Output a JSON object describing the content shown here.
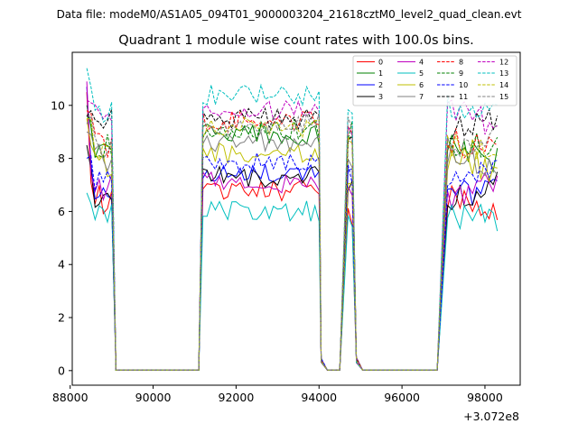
{
  "chart_data": {
    "type": "line",
    "suptitle": "Data file: modeM0/AS1A05_094T01_9000003204_21618cztM0_level2_quad_clean.evt",
    "title": "Quadrant 1 module wise count rates with 100.0s bins.",
    "xlabel": "",
    "ylabel": "",
    "x_offset_label": "+3.072e8",
    "xlim": [
      88050,
      98850
    ],
    "ylim": [
      -0.55,
      12.0
    ],
    "xticks": [
      88000,
      90000,
      92000,
      94000,
      96000,
      98000
    ],
    "xtick_labels": [
      "88000",
      "90000",
      "92000",
      "94000",
      "96000",
      "98000"
    ],
    "yticks": [
      0,
      2,
      4,
      6,
      8,
      10
    ],
    "ytick_labels": [
      "0",
      "2",
      "4",
      "6",
      "8",
      "10"
    ],
    "grid": false,
    "legend": {
      "position": "top-right",
      "columns": 4
    },
    "segments": [
      {
        "x_start": 88400,
        "x_end": 89050,
        "kind": "data"
      },
      {
        "x_start": 89100,
        "x_end": 91100,
        "kind": "zero"
      },
      {
        "x_start": 91200,
        "x_end": 94000,
        "kind": "data"
      },
      {
        "x_start": 94200,
        "x_end": 94500,
        "kind": "zero"
      },
      {
        "x_start": 94700,
        "x_end": 94850,
        "kind": "data"
      },
      {
        "x_start": 95050,
        "x_end": 96900,
        "kind": "zero"
      },
      {
        "x_start": 97100,
        "x_end": 98300,
        "kind": "data"
      }
    ],
    "series": [
      {
        "name": "0",
        "color": "#ff0000",
        "dashed": false,
        "level": 6.3,
        "peak": 10.5
      },
      {
        "name": "1",
        "color": "#008000",
        "dashed": false,
        "level": 8.4,
        "peak": 10.0
      },
      {
        "name": "2",
        "color": "#0000ff",
        "dashed": false,
        "level": 7.0,
        "peak": 10.7
      },
      {
        "name": "3",
        "color": "#000000",
        "dashed": false,
        "level": 6.8,
        "peak": 8.5
      },
      {
        "name": "4",
        "color": "#bf00bf",
        "dashed": false,
        "level": 6.6,
        "peak": 10.9
      },
      {
        "name": "5",
        "color": "#00bfbf",
        "dashed": false,
        "level": 5.5,
        "peak": 6.7
      },
      {
        "name": "6",
        "color": "#bfbf00",
        "dashed": false,
        "level": 7.7,
        "peak": 9.5
      },
      {
        "name": "7",
        "color": "#808080",
        "dashed": false,
        "level": 8.1,
        "peak": 9.0
      },
      {
        "name": "8",
        "color": "#ff0000",
        "dashed": true,
        "level": 8.9,
        "peak": 9.8
      },
      {
        "name": "9",
        "color": "#008000",
        "dashed": true,
        "level": 8.6,
        "peak": 9.6
      },
      {
        "name": "10",
        "color": "#0000ff",
        "dashed": true,
        "level": 7.3,
        "peak": 8.0
      },
      {
        "name": "11",
        "color": "#000000",
        "dashed": true,
        "level": 9.0,
        "peak": 9.6
      },
      {
        "name": "12",
        "color": "#bf00bf",
        "dashed": true,
        "level": 9.3,
        "peak": 10.2
      },
      {
        "name": "13",
        "color": "#00bfbf",
        "dashed": true,
        "level": 9.9,
        "peak": 11.4
      },
      {
        "name": "14",
        "color": "#bfbf00",
        "dashed": true,
        "level": 8.7,
        "peak": 9.5
      },
      {
        "name": "15",
        "color": "#808080",
        "dashed": true,
        "level": 8.8,
        "peak": 9.3
      }
    ]
  }
}
